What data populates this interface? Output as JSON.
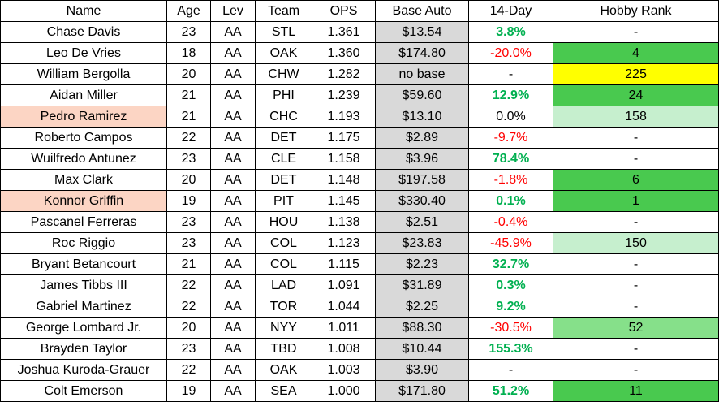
{
  "table": {
    "headers": [
      "Name",
      "Age",
      "Lev",
      "Team",
      "OPS",
      "Base Auto",
      "14-Day",
      "Hobby Rank"
    ],
    "rows": [
      {
        "name": "Chase Davis",
        "age": "23",
        "lev": "AA",
        "team": "STL",
        "ops": "1.361",
        "base": "$13.54",
        "change": "3.8%",
        "change_dir": "pos",
        "rank": "-",
        "rank_style": "none",
        "name_highlight": false
      },
      {
        "name": "Leo De Vries",
        "age": "18",
        "lev": "AA",
        "team": "OAK",
        "ops": "1.360",
        "base": "$174.80",
        "change": "-20.0%",
        "change_dir": "neg",
        "rank": "4",
        "rank_style": "dark",
        "name_highlight": false
      },
      {
        "name": "William Bergolla",
        "age": "20",
        "lev": "AA",
        "team": "CHW",
        "ops": "1.282",
        "base": "no base",
        "change": "-",
        "change_dir": "neu",
        "rank": "225",
        "rank_style": "yellow",
        "name_highlight": false
      },
      {
        "name": "Aidan Miller",
        "age": "21",
        "lev": "AA",
        "team": "PHI",
        "ops": "1.239",
        "base": "$59.60",
        "change": "12.9%",
        "change_dir": "pos",
        "rank": "24",
        "rank_style": "dark",
        "name_highlight": false
      },
      {
        "name": "Pedro Ramirez",
        "age": "21",
        "lev": "AA",
        "team": "CHC",
        "ops": "1.193",
        "base": "$13.10",
        "change": "0.0%",
        "change_dir": "neu",
        "rank": "158",
        "rank_style": "light",
        "name_highlight": true
      },
      {
        "name": "Roberto Campos",
        "age": "22",
        "lev": "AA",
        "team": "DET",
        "ops": "1.175",
        "base": "$2.89",
        "change": "-9.7%",
        "change_dir": "neg",
        "rank": "-",
        "rank_style": "none",
        "name_highlight": false
      },
      {
        "name": "Wuilfredo Antunez",
        "age": "23",
        "lev": "AA",
        "team": "CLE",
        "ops": "1.158",
        "base": "$3.96",
        "change": "78.4%",
        "change_dir": "pos",
        "rank": "-",
        "rank_style": "none",
        "name_highlight": false
      },
      {
        "name": "Max Clark",
        "age": "20",
        "lev": "AA",
        "team": "DET",
        "ops": "1.148",
        "base": "$197.58",
        "change": "-1.8%",
        "change_dir": "neg",
        "rank": "6",
        "rank_style": "dark",
        "name_highlight": false
      },
      {
        "name": "Konnor Griffin",
        "age": "19",
        "lev": "AA",
        "team": "PIT",
        "ops": "1.145",
        "base": "$330.40",
        "change": "0.1%",
        "change_dir": "pos",
        "rank": "1",
        "rank_style": "dark",
        "name_highlight": true
      },
      {
        "name": "Pascanel Ferreras",
        "age": "23",
        "lev": "AA",
        "team": "HOU",
        "ops": "1.138",
        "base": "$2.51",
        "change": "-0.4%",
        "change_dir": "neg",
        "rank": "-",
        "rank_style": "none",
        "name_highlight": false
      },
      {
        "name": "Roc Riggio",
        "age": "23",
        "lev": "AA",
        "team": "COL",
        "ops": "1.123",
        "base": "$23.83",
        "change": "-45.9%",
        "change_dir": "neg",
        "rank": "150",
        "rank_style": "light",
        "name_highlight": false
      },
      {
        "name": "Bryant Betancourt",
        "age": "21",
        "lev": "AA",
        "team": "COL",
        "ops": "1.115",
        "base": "$2.23",
        "change": "32.7%",
        "change_dir": "pos",
        "rank": "-",
        "rank_style": "none",
        "name_highlight": false
      },
      {
        "name": "James Tibbs III",
        "age": "22",
        "lev": "AA",
        "team": "LAD",
        "ops": "1.091",
        "base": "$31.89",
        "change": "0.3%",
        "change_dir": "pos",
        "rank": "-",
        "rank_style": "none",
        "name_highlight": false
      },
      {
        "name": "Gabriel Martinez",
        "age": "22",
        "lev": "AA",
        "team": "TOR",
        "ops": "1.044",
        "base": "$2.25",
        "change": "9.2%",
        "change_dir": "pos",
        "rank": "-",
        "rank_style": "none",
        "name_highlight": false
      },
      {
        "name": "George Lombard Jr.",
        "age": "20",
        "lev": "AA",
        "team": "NYY",
        "ops": "1.011",
        "base": "$88.30",
        "change": "-30.5%",
        "change_dir": "neg",
        "rank": "52",
        "rank_style": "mid",
        "name_highlight": false
      },
      {
        "name": "Brayden Taylor",
        "age": "23",
        "lev": "AA",
        "team": "TBD",
        "ops": "1.008",
        "base": "$10.44",
        "change": "155.3%",
        "change_dir": "pos",
        "rank": "-",
        "rank_style": "none",
        "name_highlight": false
      },
      {
        "name": "Joshua Kuroda-Grauer",
        "age": "22",
        "lev": "AA",
        "team": "OAK",
        "ops": "1.003",
        "base": "$3.90",
        "change": "-",
        "change_dir": "neu",
        "rank": "-",
        "rank_style": "none",
        "name_highlight": false
      },
      {
        "name": "Colt Emerson",
        "age": "19",
        "lev": "AA",
        "team": "SEA",
        "ops": "1.000",
        "base": "$171.80",
        "change": "51.2%",
        "change_dir": "pos",
        "rank": "11",
        "rank_style": "dark",
        "name_highlight": false
      }
    ]
  },
  "colors": {
    "positive": "#00b050",
    "negative": "#ff0000",
    "base_auto_fill": "#d9d9d9",
    "name_highlight": "#fcd5c4",
    "rank_dark": "#49c94f",
    "rank_mid": "#86e08a",
    "rank_light": "#c6efce",
    "rank_yellow": "#ffff00"
  }
}
